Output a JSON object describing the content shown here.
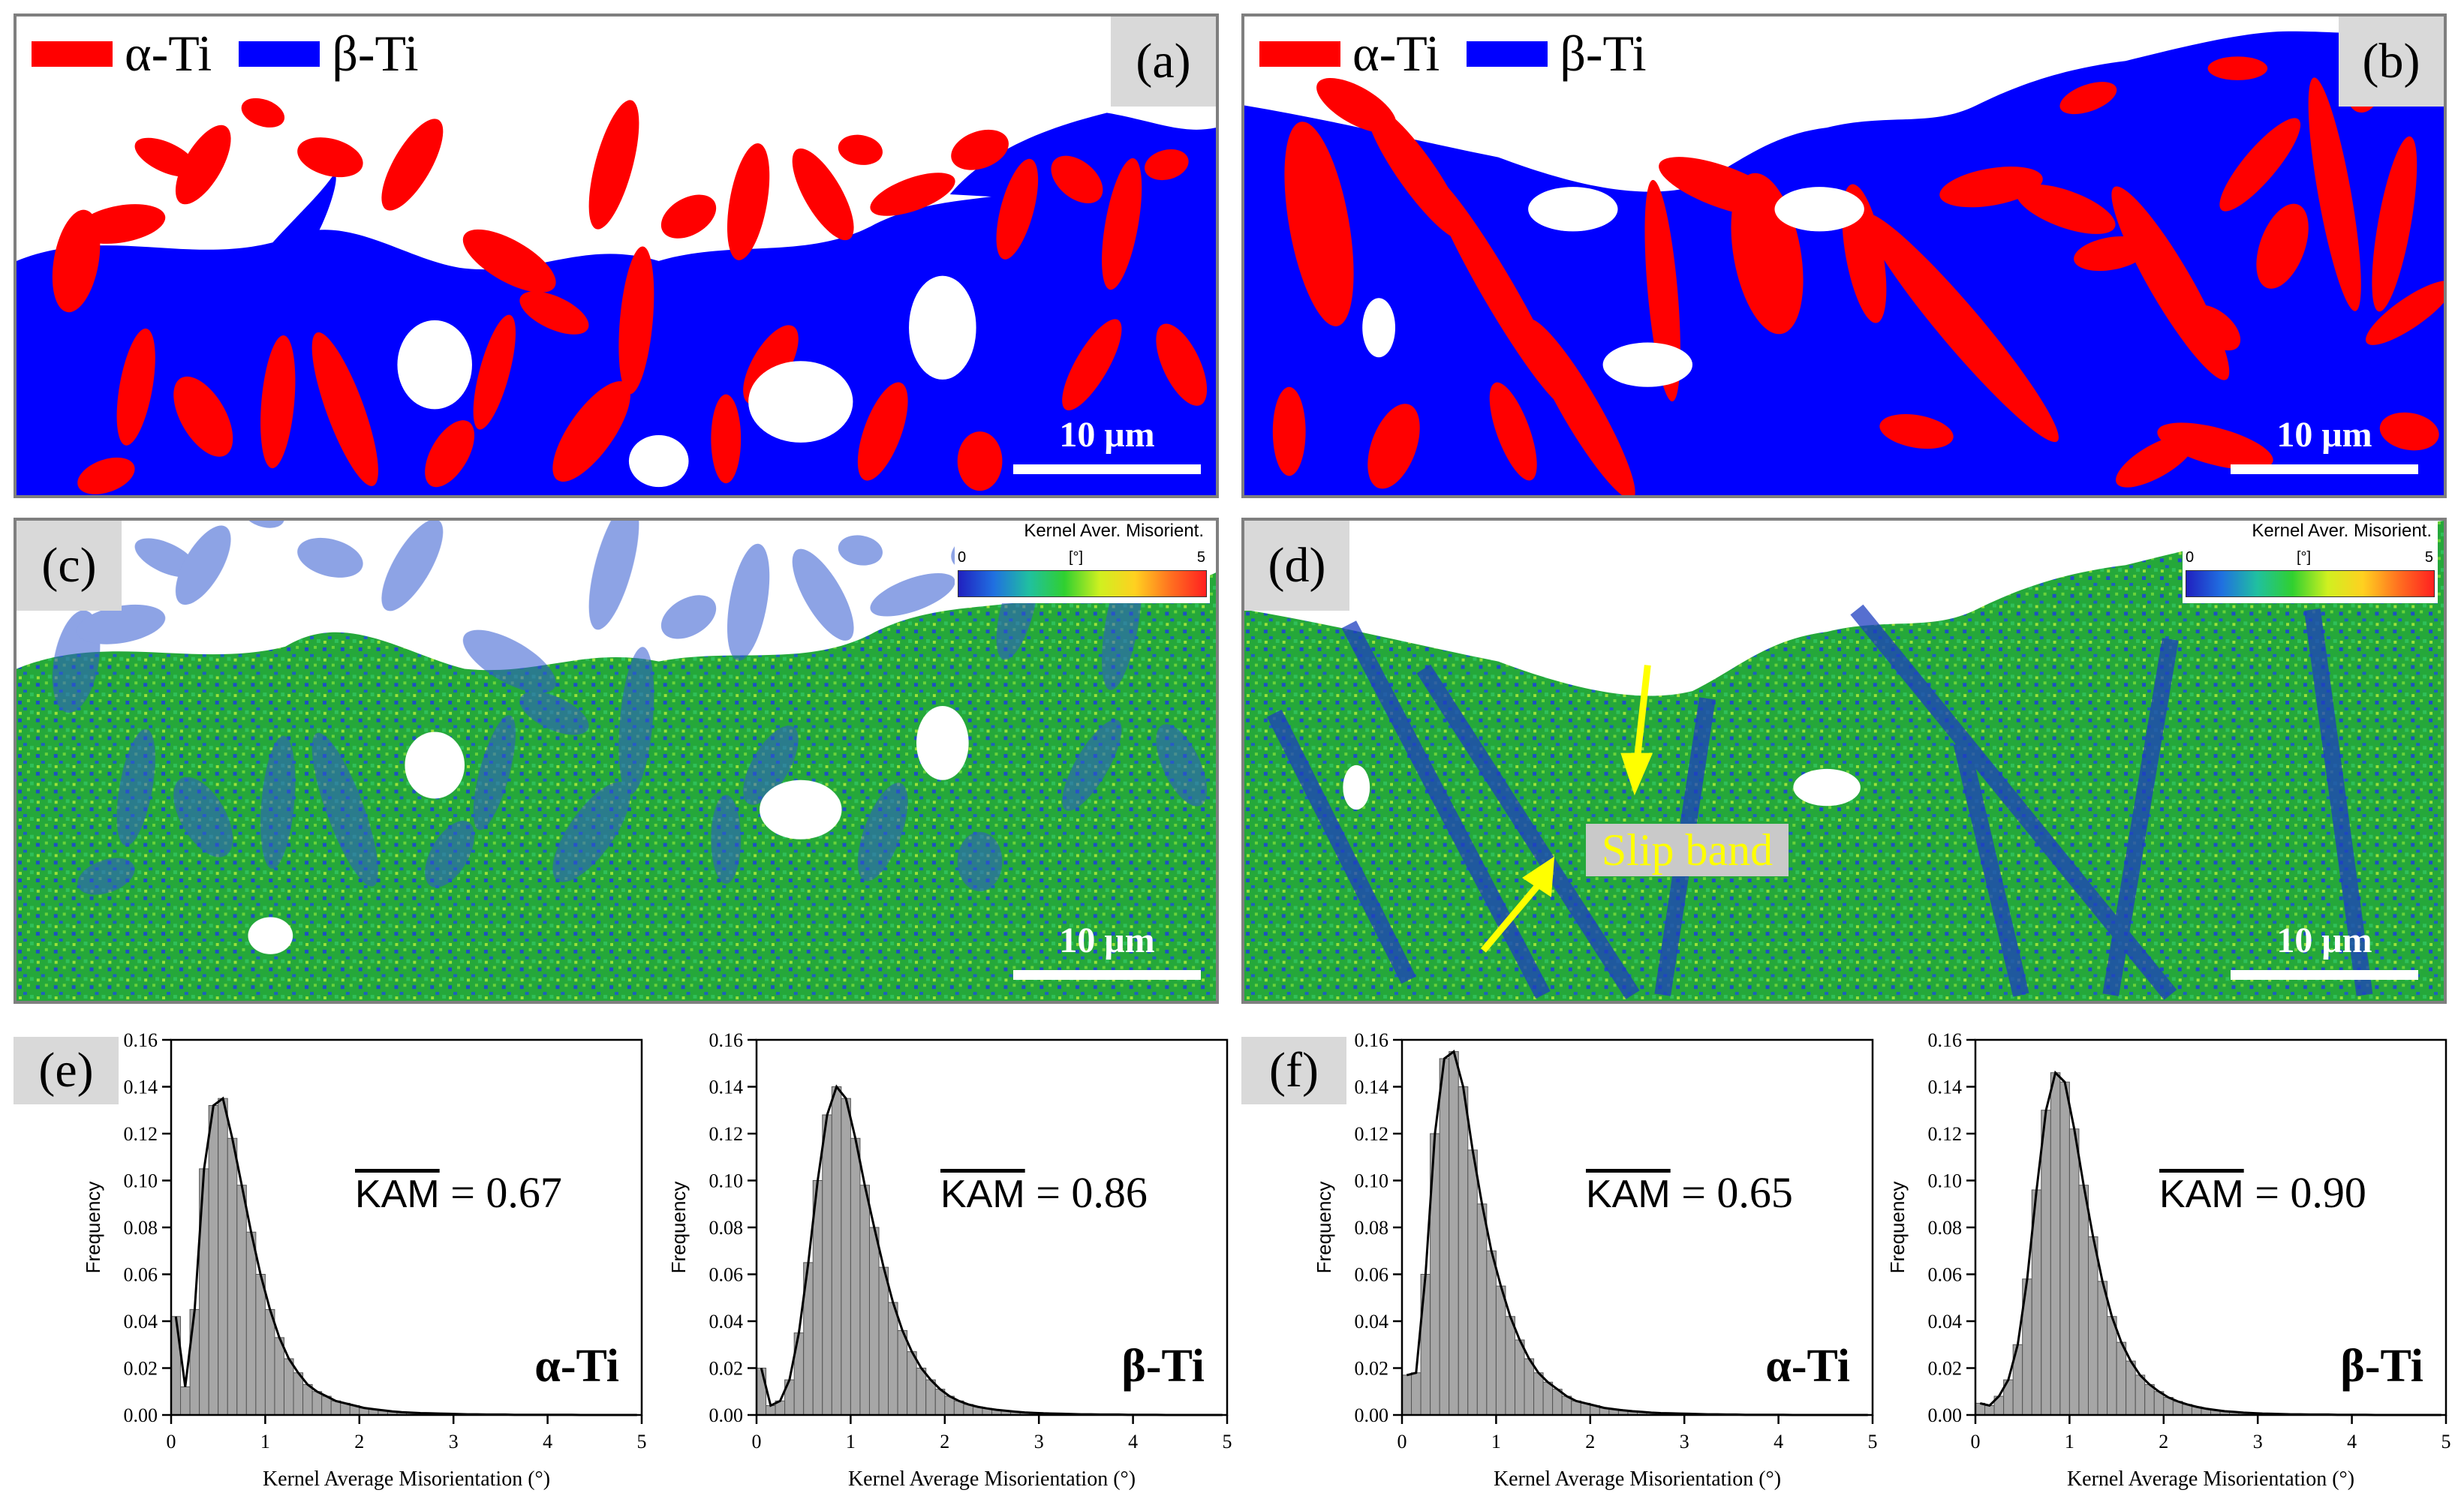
{
  "colors": {
    "alpha": "#ff0000",
    "beta": "#0000ff",
    "kam_low": "#1f3fd0",
    "kam_mid": "#22b022",
    "kam_high": "#ff2020",
    "arrow": "#ffff00",
    "bars": "#a6a6a6",
    "panel_border": "#7f7f7f",
    "label_bg": "#d9d9d9"
  },
  "phase_legend": {
    "alpha": "α-Ti",
    "beta": "β-Ti"
  },
  "panels": {
    "a": {
      "label": "(a)",
      "scale": "10 μm"
    },
    "b": {
      "label": "(b)",
      "scale": "10 μm"
    },
    "c": {
      "label": "(c)",
      "scale": "10 μm"
    },
    "d": {
      "label": "(d)",
      "scale": "10 μm",
      "annotation": "Slip band"
    },
    "e": {
      "label": "(e)"
    },
    "f": {
      "label": "(f)"
    }
  },
  "colorbar": {
    "title": "Kernel Aver. Misorient.",
    "min": "0",
    "unit": "[°]",
    "max": "5"
  },
  "chart_data": [
    {
      "type": "bar",
      "panel": "e",
      "phase": "α-Ti",
      "mean_label": "KAM",
      "mean_value": "= 0.67",
      "xlabel": "Kernel Average Misorientation (°)",
      "ylabel": "Frequency",
      "xlim": [
        0,
        5
      ],
      "ylim": [
        0,
        0.16
      ],
      "xticks": [
        "0",
        "1",
        "2",
        "3",
        "4",
        "5"
      ],
      "yticks": [
        "0.00",
        "0.02",
        "0.04",
        "0.06",
        "0.08",
        "0.10",
        "0.12",
        "0.14",
        "0.16"
      ],
      "bin_width": 0.1,
      "values": [
        0.042,
        0.012,
        0.045,
        0.105,
        0.132,
        0.135,
        0.118,
        0.098,
        0.078,
        0.06,
        0.045,
        0.033,
        0.024,
        0.018,
        0.013,
        0.01,
        0.008,
        0.006,
        0.005,
        0.004,
        0.003,
        0.0025,
        0.002,
        0.0015,
        0.0012,
        0.001,
        0.0008,
        0.0007,
        0.0006,
        0.0005,
        0.0004,
        0.0003,
        0.0003,
        0.0002,
        0.0002,
        0.0002,
        0.0001,
        0.0001,
        0.0001,
        0.0001,
        0.0001,
        0.0001,
        0.0001,
        0,
        0,
        0,
        0,
        0,
        0,
        0
      ]
    },
    {
      "type": "bar",
      "panel": "e",
      "phase": "β-Ti",
      "mean_label": "KAM",
      "mean_value": "= 0.86",
      "xlabel": "Kernel Average Misorientation (°)",
      "ylabel": "Frequency",
      "xlim": [
        0,
        5
      ],
      "ylim": [
        0,
        0.16
      ],
      "xticks": [
        "0",
        "1",
        "2",
        "3",
        "4",
        "5"
      ],
      "yticks": [
        "0.00",
        "0.02",
        "0.04",
        "0.06",
        "0.08",
        "0.10",
        "0.12",
        "0.14",
        "0.16"
      ],
      "bin_width": 0.1,
      "values": [
        0.02,
        0.004,
        0.006,
        0.015,
        0.035,
        0.065,
        0.1,
        0.128,
        0.14,
        0.135,
        0.118,
        0.098,
        0.08,
        0.063,
        0.048,
        0.036,
        0.027,
        0.02,
        0.015,
        0.011,
        0.008,
        0.006,
        0.0045,
        0.0035,
        0.0028,
        0.0022,
        0.0018,
        0.0014,
        0.0011,
        0.0009,
        0.0007,
        0.0006,
        0.0005,
        0.0004,
        0.0003,
        0.0003,
        0.0002,
        0.0002,
        0.0002,
        0.0001,
        0.0001,
        0.0001,
        0.0001,
        0,
        0,
        0,
        0,
        0,
        0,
        0
      ]
    },
    {
      "type": "bar",
      "panel": "f",
      "phase": "α-Ti",
      "mean_label": "KAM",
      "mean_value": "= 0.65",
      "xlabel": "Kernel Average Misorientation (°)",
      "ylabel": "Frequency",
      "xlim": [
        0,
        5
      ],
      "ylim": [
        0,
        0.16
      ],
      "xticks": [
        "0",
        "1",
        "2",
        "3",
        "4",
        "5"
      ],
      "yticks": [
        "0.00",
        "0.02",
        "0.04",
        "0.06",
        "0.08",
        "0.10",
        "0.12",
        "0.14",
        "0.16"
      ],
      "bin_width": 0.1,
      "values": [
        0.017,
        0.018,
        0.06,
        0.12,
        0.152,
        0.155,
        0.14,
        0.113,
        0.09,
        0.07,
        0.055,
        0.042,
        0.032,
        0.024,
        0.018,
        0.014,
        0.011,
        0.008,
        0.006,
        0.005,
        0.004,
        0.003,
        0.0025,
        0.002,
        0.0016,
        0.0013,
        0.001,
        0.0008,
        0.0007,
        0.0006,
        0.0005,
        0.0004,
        0.0003,
        0.0003,
        0.0002,
        0.0002,
        0.0001,
        0.0001,
        0.0001,
        0.0001,
        0.0001,
        0,
        0,
        0,
        0,
        0,
        0,
        0,
        0,
        0
      ]
    },
    {
      "type": "bar",
      "panel": "f",
      "phase": "β-Ti",
      "mean_label": "KAM",
      "mean_value": "= 0.90",
      "xlabel": "Kernel Average Misorientation (°)",
      "ylabel": "Frequency",
      "xlim": [
        0,
        5
      ],
      "ylim": [
        0,
        0.16
      ],
      "xticks": [
        "0",
        "1",
        "2",
        "3",
        "4",
        "5"
      ],
      "yticks": [
        "0.00",
        "0.02",
        "0.04",
        "0.06",
        "0.08",
        "0.10",
        "0.12",
        "0.14",
        "0.16"
      ],
      "bin_width": 0.1,
      "values": [
        0.005,
        0.004,
        0.008,
        0.015,
        0.03,
        0.058,
        0.096,
        0.13,
        0.146,
        0.142,
        0.122,
        0.098,
        0.076,
        0.057,
        0.042,
        0.031,
        0.023,
        0.017,
        0.013,
        0.01,
        0.0075,
        0.0058,
        0.0045,
        0.0035,
        0.0027,
        0.0021,
        0.0016,
        0.0013,
        0.001,
        0.0008,
        0.0006,
        0.0005,
        0.0004,
        0.0003,
        0.0003,
        0.0002,
        0.0002,
        0.0002,
        0.0001,
        0.0001,
        0.0001,
        0.0001,
        0,
        0,
        0,
        0,
        0,
        0,
        0,
        0
      ]
    }
  ]
}
